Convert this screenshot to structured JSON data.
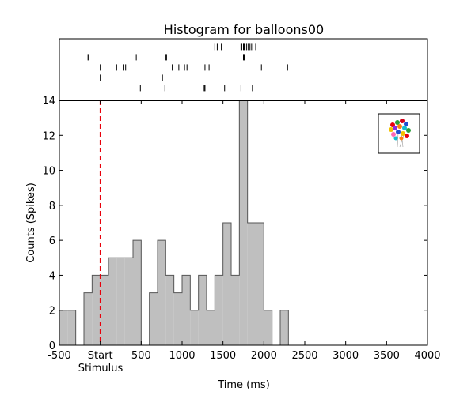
{
  "colors": {
    "bar_fill": "#bfbfbf",
    "bar_edge": "#555555",
    "stimulus_line": "#e8000b",
    "raster_tick": "#000000",
    "axes": "#000000"
  },
  "chart_data": {
    "type": "bar",
    "title": "Histogram for balloons00",
    "xlabel": "Time (ms)",
    "ylabel": "Counts (Spikes)",
    "xlim": [
      -500,
      4000
    ],
    "ylim": [
      0,
      14
    ],
    "xticks": [
      -500,
      0,
      500,
      1000,
      1500,
      2000,
      2500,
      3000,
      3500,
      4000
    ],
    "xtick_labels": [
      "-500",
      "Start",
      "500",
      "1000",
      "1500",
      "2000",
      "2500",
      "3000",
      "3500",
      "4000"
    ],
    "yticks": [
      0,
      2,
      4,
      6,
      8,
      10,
      12,
      14
    ],
    "ytick_labels": [
      "0",
      "2",
      "4",
      "6",
      "8",
      "10",
      "12",
      "14"
    ],
    "stimulus": {
      "x": 0,
      "label": "Stimulus",
      "style": "dashed"
    },
    "bin_width": 100,
    "bin_starts": [
      -500,
      -400,
      -300,
      -200,
      -100,
      0,
      100,
      200,
      300,
      400,
      500,
      600,
      700,
      800,
      900,
      1000,
      1100,
      1200,
      1300,
      1400,
      1500,
      1600,
      1700,
      1800,
      1900,
      2000,
      2100,
      2200,
      2300
    ],
    "values": [
      2,
      2,
      0,
      3,
      4,
      4,
      5,
      5,
      5,
      6,
      0,
      3,
      6,
      4,
      3,
      4,
      2,
      4,
      2,
      4,
      7,
      4,
      14,
      7,
      7,
      2,
      0,
      2,
      0
    ],
    "raster": {
      "trials": [
        [
          1400,
          1430,
          1480,
          1720,
          1730,
          1750,
          1760,
          1770,
          1790,
          1810,
          1830,
          1850,
          1900
        ],
        [
          -150,
          -140,
          440,
          800,
          810,
          1750,
          1760
        ],
        [
          0,
          200,
          280,
          310,
          880,
          960,
          1030,
          1060,
          1280,
          1330,
          1970,
          2290
        ],
        [
          0,
          760
        ],
        [
          490,
          790,
          1270,
          1280,
          1520,
          1720,
          1860
        ]
      ]
    },
    "thumbnail": {
      "subject": "balloons"
    },
    "grid": false,
    "legend": "none"
  }
}
